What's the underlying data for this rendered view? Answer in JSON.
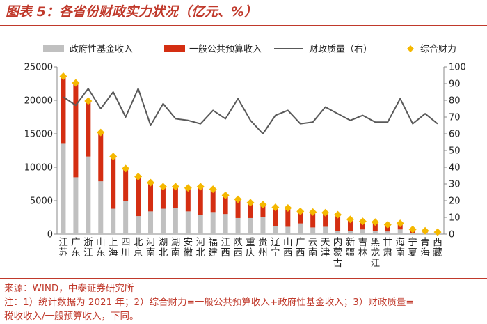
{
  "header": {
    "title": "图表 5：各省份财政实力状况（亿元、%）"
  },
  "footer": {
    "source": "来源：WIND，中泰证券研究所",
    "note_line1": "注：1）统计数据为 2021 年；2）综合财力=一般公共预算收入+政府性基金收入；3）财政质量=",
    "note_line2": "税收收入/一般预算收入，下同。"
  },
  "colors": {
    "accent": "#c0392b",
    "fund_bar": "#c0c0c0",
    "budget_bar": "#d42e12",
    "quality_line": "#595959",
    "total_marker": "#f5b800"
  },
  "chart_data": {
    "type": "bar",
    "categories": [
      "江苏",
      "广东",
      "浙江",
      "山东",
      "上海",
      "四川",
      "北京",
      "河南",
      "湖北",
      "湖南",
      "安徽",
      "河北",
      "福建",
      "江西",
      "陕西",
      "重庆",
      "贵州",
      "辽宁",
      "山西",
      "广西",
      "云南",
      "天津",
      "内蒙古",
      "新疆",
      "吉林",
      "黑龙江",
      "甘肃",
      "海南",
      "宁夏",
      "青海",
      "西藏"
    ],
    "series": [
      {
        "name": "政府性基金收入",
        "axis": "left",
        "type": "bar-stacked",
        "values": [
          13600,
          8500,
          11600,
          7900,
          3800,
          5000,
          2700,
          3400,
          3800,
          3900,
          3400,
          2900,
          3300,
          3000,
          2400,
          2400,
          2500,
          1200,
          1100,
          1600,
          1000,
          1100,
          500,
          500,
          700,
          500,
          400,
          700,
          200,
          200,
          100
        ]
      },
      {
        "name": "一般公共预算收入",
        "axis": "left",
        "type": "bar-stacked",
        "values": [
          10000,
          14100,
          8300,
          7300,
          7800,
          4800,
          5900,
          4300,
          3300,
          3200,
          3500,
          4200,
          3400,
          2800,
          2800,
          2300,
          1900,
          2800,
          2800,
          1800,
          2300,
          2100,
          2400,
          1700,
          1200,
          1300,
          1000,
          900,
          500,
          300,
          200
        ]
      },
      {
        "name": "财政质量（右）",
        "axis": "right",
        "type": "line",
        "values": [
          82,
          77,
          87,
          75,
          85,
          70,
          87,
          65,
          78,
          69,
          68,
          66,
          74,
          69,
          81,
          68,
          60,
          71,
          74,
          66,
          67,
          76,
          72,
          68,
          71,
          67,
          67,
          81,
          66,
          72,
          66
        ]
      },
      {
        "name": "综合财力",
        "axis": "left",
        "type": "marker",
        "values": [
          23600,
          22600,
          19900,
          15200,
          11600,
          9800,
          8600,
          7700,
          7100,
          7100,
          6900,
          7100,
          6700,
          5800,
          5200,
          4700,
          4400,
          4000,
          3900,
          3400,
          3300,
          3200,
          2900,
          2200,
          1900,
          1800,
          1400,
          1600,
          700,
          500,
          300
        ]
      }
    ],
    "y_left": {
      "min": 0,
      "max": 25000,
      "ticks": [
        "0",
        "5000",
        "10000",
        "15000",
        "20000",
        "25000"
      ]
    },
    "y_right": {
      "min": 0,
      "max": 100,
      "ticks": [
        "0",
        "10",
        "20",
        "30",
        "40",
        "50",
        "60",
        "70",
        "80",
        "90",
        "100"
      ]
    },
    "legend": {
      "position": "top",
      "items": [
        "政府性基金收入",
        "一般公共预算收入",
        "财政质量（右）",
        "综合财力"
      ]
    },
    "grid": false
  }
}
